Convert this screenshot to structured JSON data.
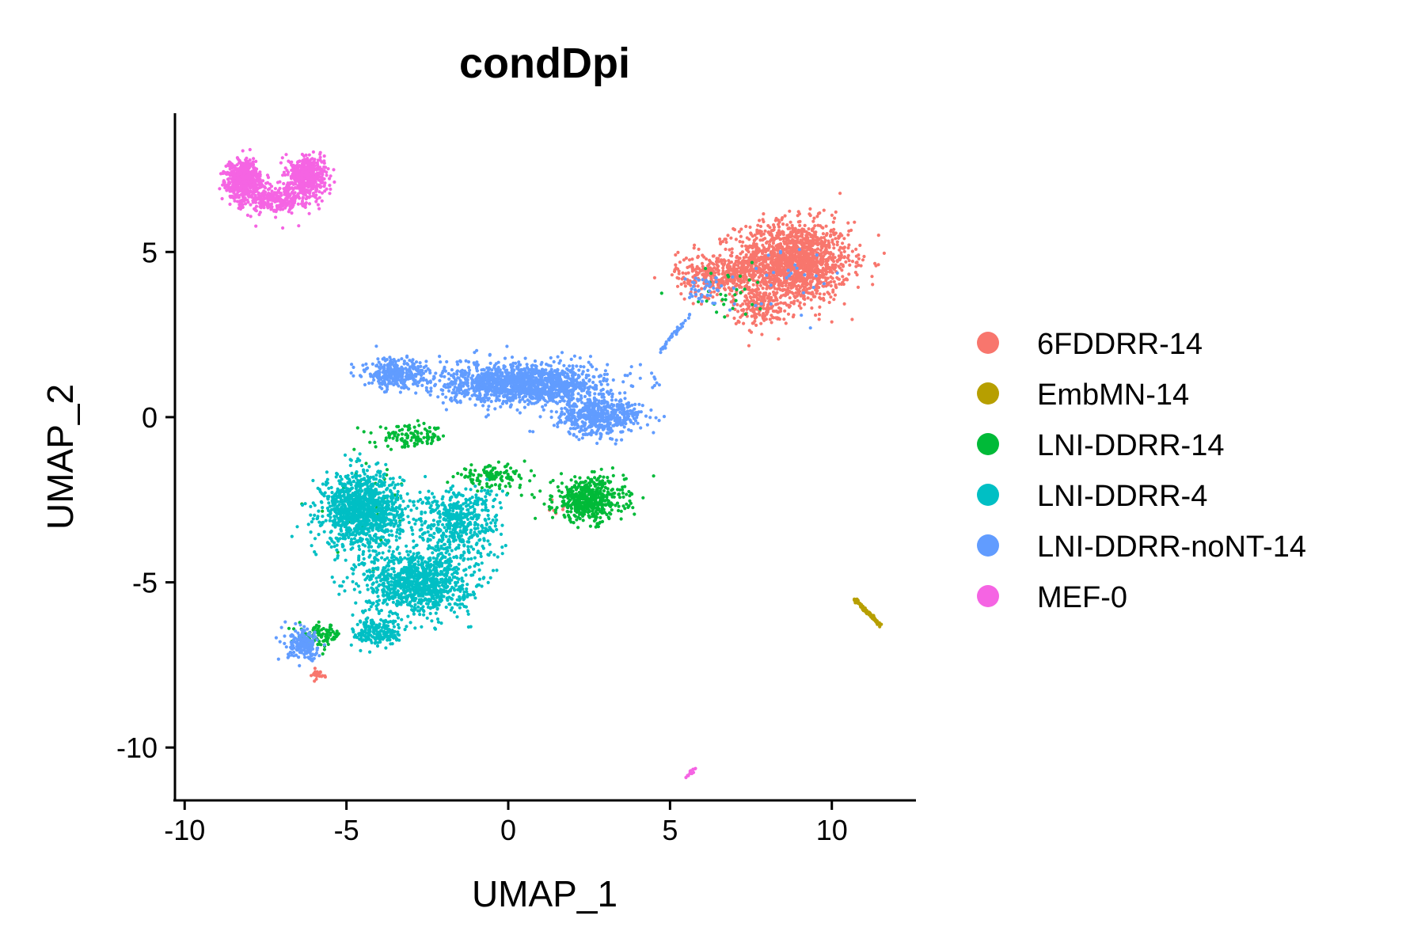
{
  "chart_data": {
    "type": "scatter",
    "title": "condDpi",
    "xlabel": "UMAP_1",
    "ylabel": "UMAP_2",
    "xlim": [
      -10.3,
      12.6
    ],
    "ylim": [
      -11.6,
      9.2
    ],
    "x_ticks": [
      -10,
      -5,
      0,
      5,
      10
    ],
    "x_tick_labels": [
      "-10",
      "-5",
      "0",
      "5",
      "10"
    ],
    "y_ticks": [
      -10,
      -5,
      0,
      5
    ],
    "y_tick_labels": [
      "-10",
      "-5",
      "0",
      "5"
    ],
    "grid": false,
    "legend_position": "right",
    "series": [
      {
        "name": "6FDDRR-14",
        "color": "#F8766D",
        "clusters": [
          {
            "center": [
              8.8,
              4.7
            ],
            "spread": [
              1.6,
              1.1
            ],
            "count": 1600
          },
          {
            "center": [
              6.5,
              4.3
            ],
            "spread": [
              1.2,
              0.6
            ],
            "count": 350
          },
          {
            "center": [
              7.8,
              3.3
            ],
            "spread": [
              0.8,
              0.5
            ],
            "count": 150
          },
          {
            "center": [
              -5.9,
              -7.8
            ],
            "spread": [
              0.3,
              0.15
            ],
            "count": 25
          },
          {
            "center": [
              1.5,
              -2.8
            ],
            "spread": [
              0.3,
              0.3
            ],
            "count": 6
          }
        ]
      },
      {
        "name": "EmbMN-14",
        "color": "#B79F00",
        "line_segment": {
          "from": [
            10.7,
            -5.5
          ],
          "to": [
            11.5,
            -6.3
          ],
          "count": 120
        }
      },
      {
        "name": "LNI-DDRR-14",
        "color": "#00BA38",
        "clusters": [
          {
            "center": [
              2.5,
              -2.5
            ],
            "spread": [
              1.0,
              0.6
            ],
            "count": 500
          },
          {
            "center": [
              -0.5,
              -1.8
            ],
            "spread": [
              1.0,
              0.3
            ],
            "count": 120
          },
          {
            "center": [
              -3.0,
              -0.6
            ],
            "spread": [
              1.0,
              0.3
            ],
            "count": 120
          },
          {
            "center": [
              -5.8,
              -6.6
            ],
            "spread": [
              0.6,
              0.3
            ],
            "count": 100
          },
          {
            "center": [
              6.8,
              3.7
            ],
            "spread": [
              1.5,
              0.7
            ],
            "count": 30
          },
          {
            "center": [
              -4.5,
              -2.5
            ],
            "spread": [
              1.5,
              1.5
            ],
            "count": 30
          }
        ]
      },
      {
        "name": "LNI-DDRR-4",
        "color": "#00BFC4",
        "clusters": [
          {
            "center": [
              -4.5,
              -2.8
            ],
            "spread": [
              1.1,
              1.0
            ],
            "count": 1200
          },
          {
            "center": [
              -2.8,
              -5.0
            ],
            "spread": [
              1.5,
              0.9
            ],
            "count": 1000
          },
          {
            "center": [
              -1.6,
              -3.2
            ],
            "spread": [
              1.2,
              1.0
            ],
            "count": 500
          },
          {
            "center": [
              -4.0,
              -6.5
            ],
            "spread": [
              0.7,
              0.4
            ],
            "count": 200
          }
        ]
      },
      {
        "name": "LNI-DDRR-noNT-14",
        "color": "#619CFF",
        "clusters": [
          {
            "center": [
              0.5,
              1.0
            ],
            "spread": [
              2.3,
              0.55
            ],
            "count": 1400
          },
          {
            "center": [
              2.8,
              0.0
            ],
            "spread": [
              1.2,
              0.5
            ],
            "count": 500
          },
          {
            "center": [
              -3.5,
              1.3
            ],
            "spread": [
              0.9,
              0.4
            ],
            "count": 300
          },
          {
            "center": [
              -6.3,
              -6.9
            ],
            "spread": [
              0.5,
              0.4
            ],
            "count": 200
          },
          {
            "center": [
              6.1,
              3.8
            ],
            "spread": [
              0.5,
              0.4
            ],
            "count": 40
          },
          {
            "center": [
              8.5,
              4.0
            ],
            "spread": [
              1.5,
              1.0
            ],
            "count": 30
          }
        ],
        "line_segment": {
          "from": [
            4.7,
            2.0
          ],
          "to": [
            5.6,
            3.1
          ],
          "count": 40
        }
      },
      {
        "name": "MEF-0",
        "color": "#F564E3",
        "clusters": [
          {
            "center": [
              -8.2,
              7.2
            ],
            "spread": [
              0.5,
              0.5
            ],
            "count": 550
          },
          {
            "center": [
              -6.2,
              7.3
            ],
            "spread": [
              0.5,
              0.5
            ],
            "count": 550
          },
          {
            "center": [
              -7.2,
              6.6
            ],
            "spread": [
              1.0,
              0.4
            ],
            "count": 300
          }
        ],
        "line_segment": {
          "from": [
            5.5,
            -10.9
          ],
          "to": [
            5.8,
            -10.6
          ],
          "count": 15
        }
      }
    ]
  }
}
